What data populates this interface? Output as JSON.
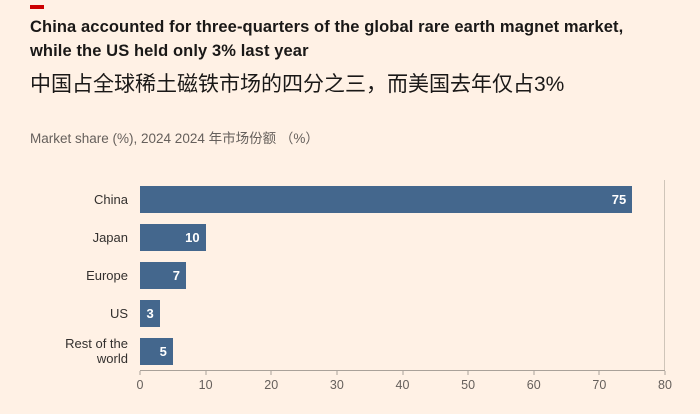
{
  "page": {
    "background": "#FFF1E5",
    "accent_color": "#CC0000"
  },
  "header": {
    "title_en_line1": "China accounted for three-quarters of the global rare earth magnet market,",
    "title_en_line2": "while the US held only 3% last year",
    "title_zh": "中国占全球稀土磁铁市场的四分之三，而美国去年仅占3%",
    "subtitle": "Market share (%), 2024  2024 年市场份额 （%）"
  },
  "chart_data": {
    "type": "bar",
    "orientation": "horizontal",
    "title_en": "China accounted for three-quarters of the global rare earth magnet market, while the US held only 3% last year",
    "title_zh": "中国占全球稀土磁铁市场的四分之三，而美国去年仅占3%",
    "subtitle": "Market share (%), 2024  2024 年市场份额 （%）",
    "categories": [
      "China",
      "Japan",
      "Europe",
      "US",
      "Rest of the world"
    ],
    "values": [
      75,
      10,
      7,
      3,
      5
    ],
    "xlim": [
      0,
      80
    ],
    "x_ticks": [
      0,
      10,
      20,
      30,
      40,
      50,
      60,
      70,
      80
    ],
    "bar_color": "#44678D",
    "value_label_color": "#FFFFFF",
    "grid": "right-boundary-line-only",
    "legend": "none"
  }
}
